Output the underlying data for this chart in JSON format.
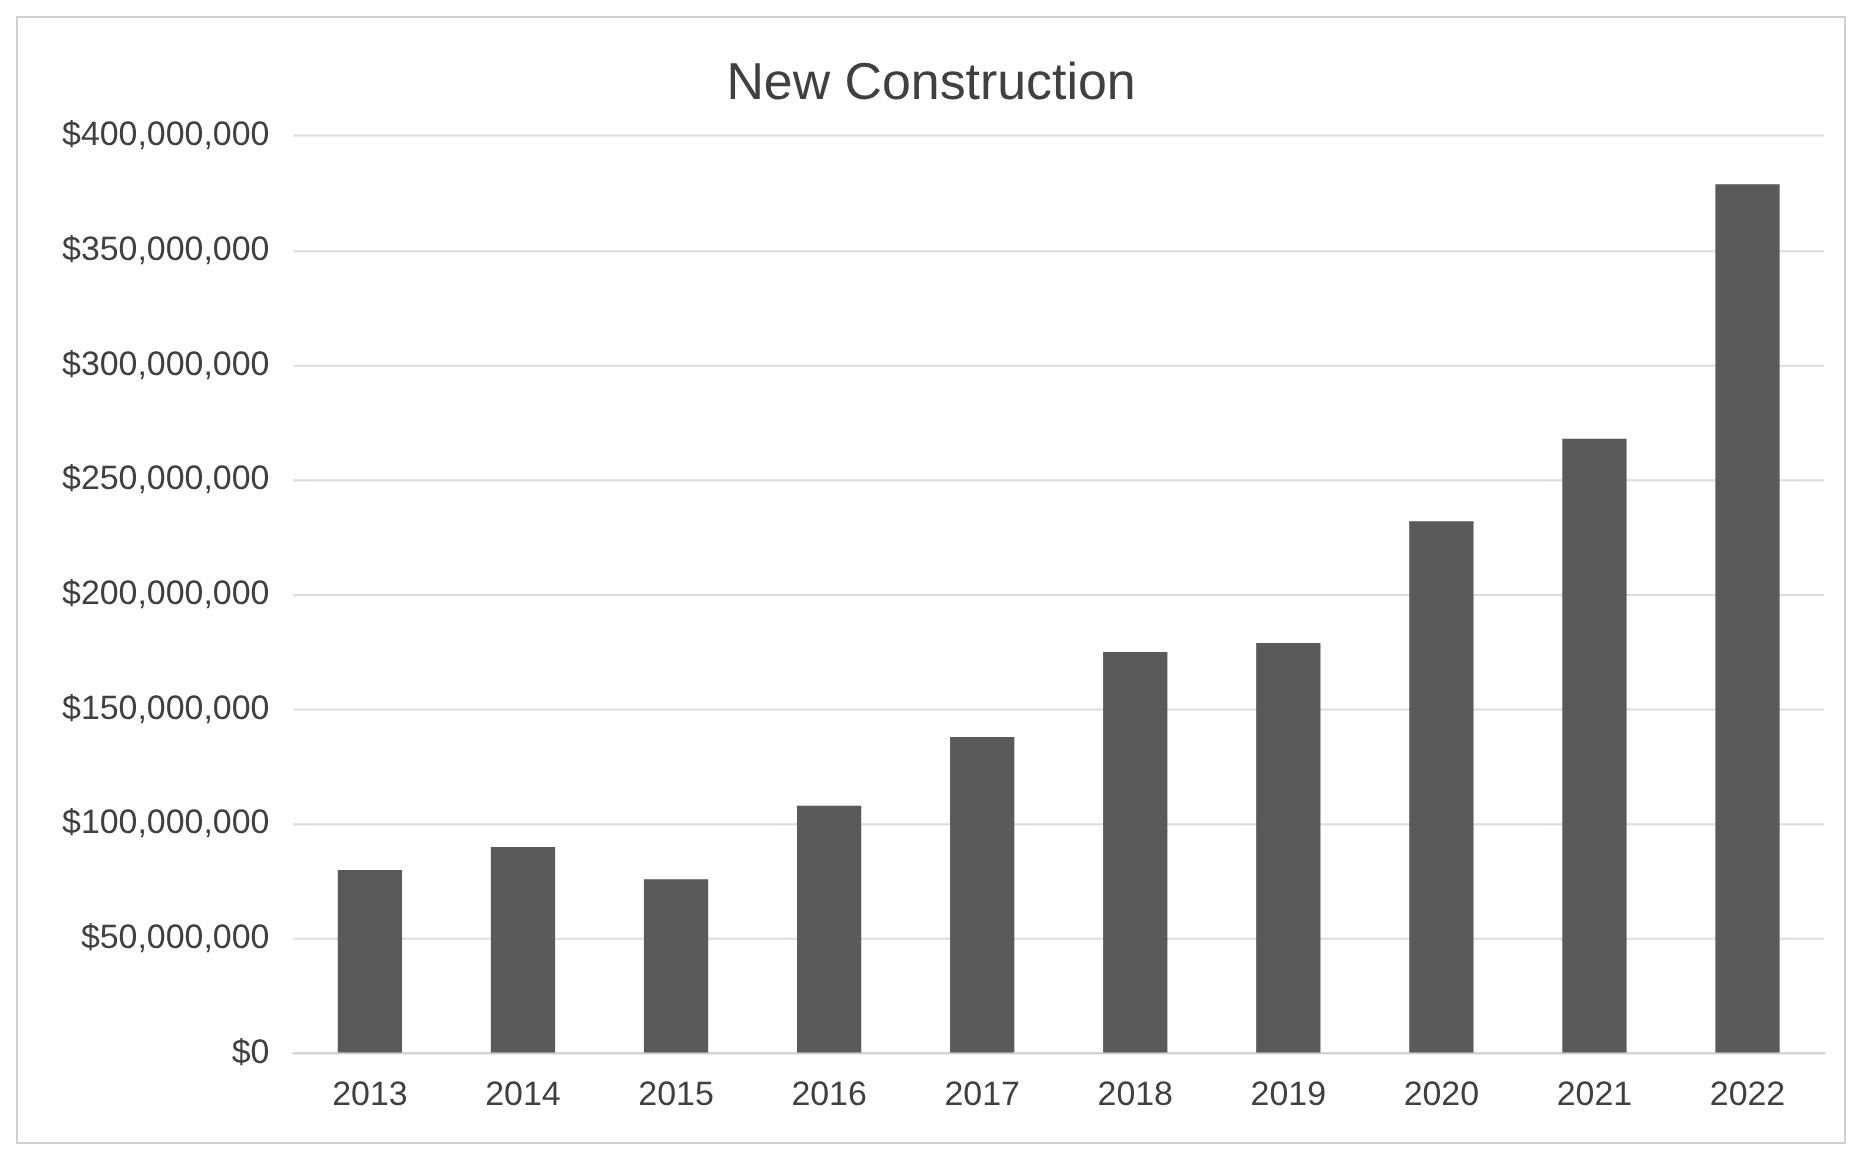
{
  "chart_data": {
    "type": "bar",
    "title": "New Construction",
    "categories": [
      "2013",
      "2014",
      "2015",
      "2016",
      "2017",
      "2018",
      "2019",
      "2020",
      "2021",
      "2022"
    ],
    "series": [
      {
        "color": "#5a5a5a",
        "values": [
          80000000,
          90000000,
          76000000,
          108000000,
          138000000,
          175000000,
          179000000,
          232000000,
          268000000,
          379000000
        ]
      }
    ],
    "ylim": [
      0,
      400000000
    ],
    "yticks": [
      {
        "value": 0,
        "label": "$0"
      },
      {
        "value": 50000000,
        "label": "$50,000,000"
      },
      {
        "value": 100000000,
        "label": "$100,000,000"
      },
      {
        "value": 150000000,
        "label": "$150,000,000"
      },
      {
        "value": 200000000,
        "label": "$200,000,000"
      },
      {
        "value": 250000000,
        "label": "$250,000,000"
      },
      {
        "value": 300000000,
        "label": "$300,000,000"
      },
      {
        "value": 350000000,
        "label": "$350,000,000"
      },
      {
        "value": 400000000,
        "label": "$400,000,000"
      }
    ],
    "grid": "y",
    "legend": false
  }
}
